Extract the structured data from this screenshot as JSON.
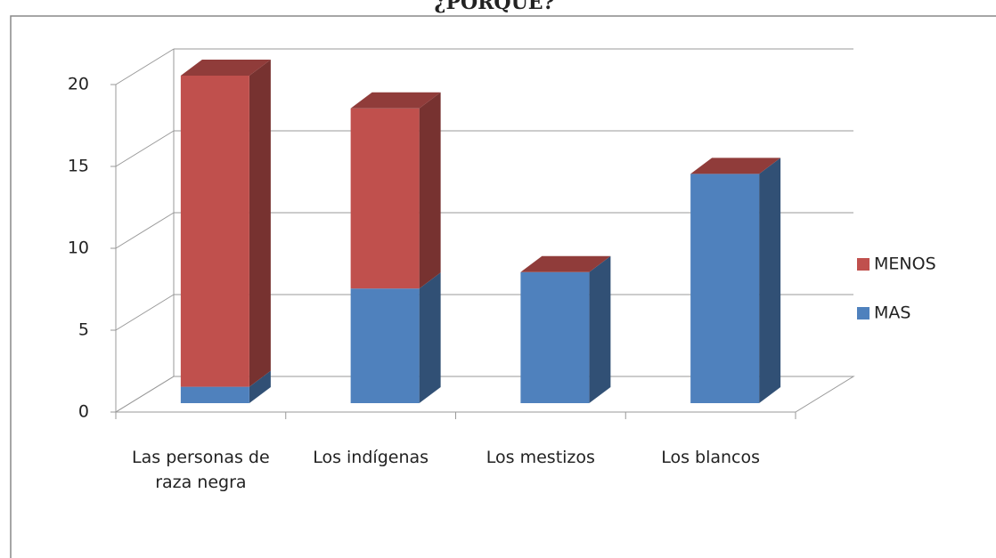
{
  "chart_data": {
    "type": "bar3d_stacked",
    "title": "¿PORQUE?",
    "categories": [
      "Las personas de raza negra",
      "Los indígenas",
      "Los mestizos",
      "Los blancos"
    ],
    "series": [
      {
        "name": "MAS",
        "color": "#4f81bd",
        "values": [
          1,
          7,
          8,
          14
        ]
      },
      {
        "name": "MENOS",
        "color": "#c0504d",
        "values": [
          19,
          11,
          0,
          0
        ]
      }
    ],
    "ylim": [
      0,
      20
    ],
    "yticks": [
      0,
      5,
      10,
      15,
      20
    ],
    "grid": true,
    "legend": "right"
  }
}
